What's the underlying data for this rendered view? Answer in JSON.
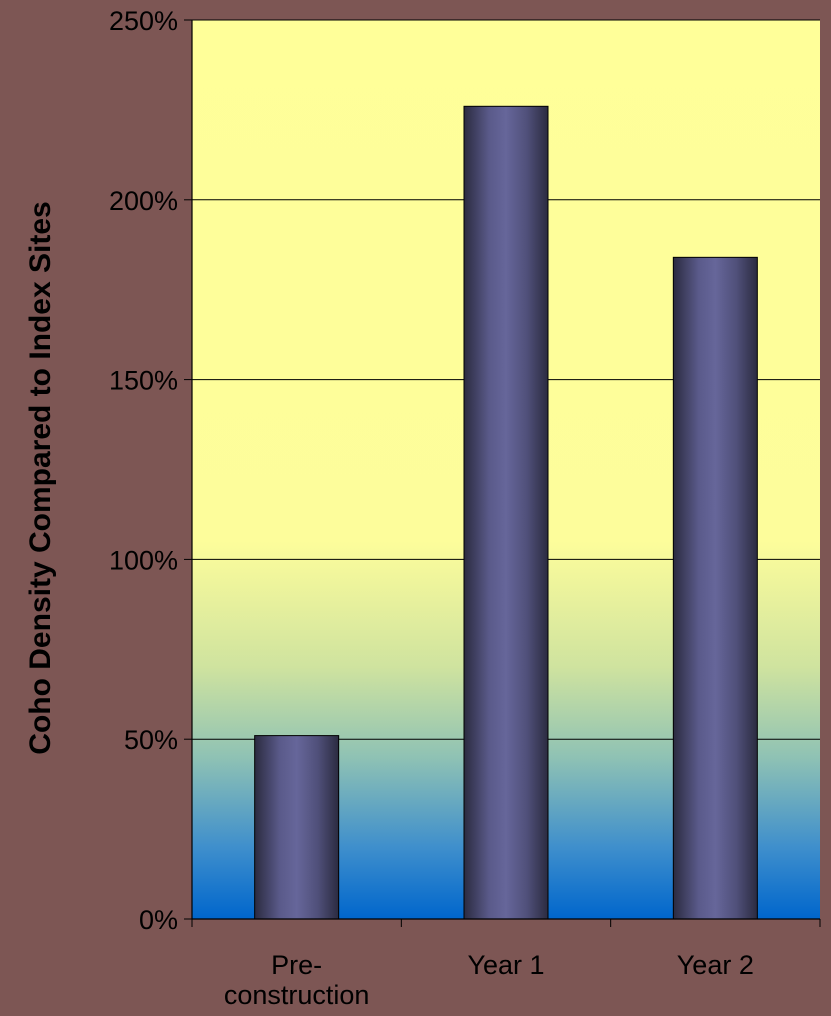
{
  "chart_data": {
    "type": "bar",
    "title": "",
    "xlabel": "",
    "ylabel": "Coho Density Compared to Index Sites",
    "categories": [
      [
        "Pre-",
        "construction"
      ],
      [
        "Year 1"
      ],
      [
        "Year 2"
      ]
    ],
    "values": [
      51,
      226,
      184
    ],
    "ylim": [
      0,
      250
    ],
    "yticks": [
      0,
      50,
      100,
      150,
      200,
      250
    ],
    "ytick_labels": [
      "0%",
      "50%",
      "100%",
      "150%",
      "200%",
      "250%"
    ],
    "grid": true,
    "legend": "none"
  },
  "colors": {
    "page_background": "#7d5654",
    "plot_top": "#ffff99",
    "plot_bottom": "#0066cc",
    "bar_center": "#66669a",
    "bar_edge": "#2b2b40",
    "axis_text": "#000000",
    "gridline": "#000000"
  }
}
